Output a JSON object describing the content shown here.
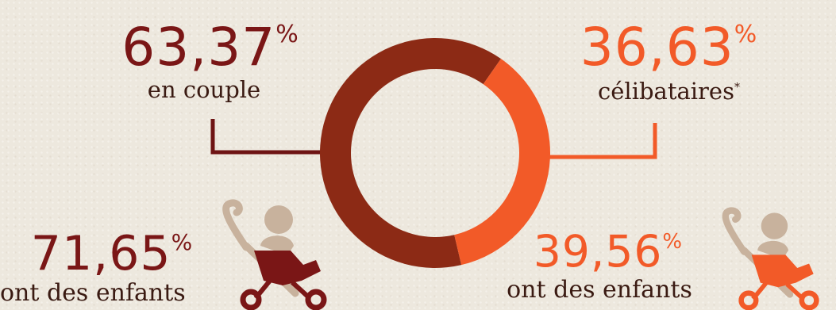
{
  "colors": {
    "dark": "#7a1616",
    "rust": "#8c2a15",
    "orange": "#f25a28",
    "beige": "#c8b29d",
    "line_dark": "#6e1414",
    "line_orange": "#f25a28"
  },
  "stats": {
    "couple": {
      "value": "63,37",
      "unit": "%",
      "label": "en couple"
    },
    "single": {
      "value": "36,63",
      "unit": "%",
      "label": "célibataires",
      "note_mark": "*"
    },
    "couple_children": {
      "value": "71,65",
      "unit": "%",
      "label": "ont des enfants"
    },
    "single_children": {
      "value": "39,56",
      "unit": "%",
      "label": "ont des enfants"
    }
  },
  "icons": {
    "left": "stroller-icon",
    "right": "stroller-icon"
  },
  "chart_data": {
    "type": "pie",
    "donut": true,
    "categories": [
      "en couple",
      "célibataires"
    ],
    "values": [
      63.37,
      36.63
    ],
    "colors": [
      "#8c2a15",
      "#f25a28"
    ]
  }
}
